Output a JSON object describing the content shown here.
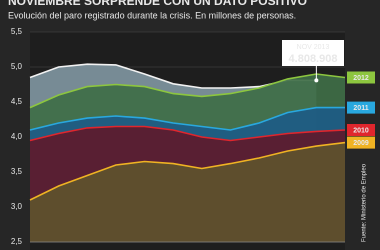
{
  "chart_data": {
    "type": "area",
    "title": "NOVIEMBRE SORPRENDE CON UN DATO POSITIVO",
    "subtitle": "Evolución del paro registrado durante la crisis. En millones de personas.",
    "source": "Fuente: Ministerio de Empleo",
    "categories": [
      null,
      null,
      null,
      null,
      null,
      null,
      null,
      null,
      null,
      null,
      null,
      null
    ],
    "ylim": [
      2.5,
      5.5
    ],
    "yticks": [
      {
        "value": 2.5,
        "label": "2,5"
      },
      {
        "value": 3.0,
        "label": "3,0"
      },
      {
        "value": 3.5,
        "label": "3,5"
      },
      {
        "value": 4.0,
        "label": "4,0"
      },
      {
        "value": 4.5,
        "label": "4,5"
      },
      {
        "value": 5.0,
        "label": "5,0"
      },
      {
        "value": 5.5,
        "label": "5,5"
      }
    ],
    "grid": true,
    "series": [
      {
        "color": "#f2f2f2",
        "fill": "#7f95a0",
        "values": [
          4.85,
          5.0,
          5.04,
          5.03,
          4.9,
          4.76,
          4.7,
          4.7,
          4.72,
          4.81,
          4.808908,
          null
        ],
        "value_labels": [
          null,
          null,
          null,
          null,
          null,
          null,
          null,
          null,
          null,
          null,
          "4.808.908",
          null
        ],
        "annotation": "NOV 2013"
      },
      {
        "name": "2012",
        "color": "#8dc63f",
        "fill": "#3f6e46",
        "values": [
          4.42,
          4.6,
          4.72,
          4.75,
          4.72,
          4.62,
          4.58,
          4.62,
          4.7,
          4.83,
          4.9,
          4.85
        ]
      },
      {
        "name": "2011",
        "color": "#29a8df",
        "fill": "#1d5b86",
        "values": [
          4.1,
          4.2,
          4.27,
          4.3,
          4.27,
          4.2,
          4.15,
          4.1,
          4.2,
          4.35,
          4.42,
          4.42
        ]
      },
      {
        "name": "2010",
        "color": "#e0262d",
        "fill": "#5e1a2c",
        "values": [
          3.95,
          4.05,
          4.13,
          4.15,
          4.15,
          4.1,
          4.0,
          3.95,
          4.0,
          4.05,
          4.08,
          4.1
        ]
      },
      {
        "name": "2009",
        "color": "#f0b323",
        "fill": "#5e532c",
        "values": [
          3.1,
          3.3,
          3.45,
          3.6,
          3.65,
          3.62,
          3.55,
          3.62,
          3.7,
          3.8,
          3.87,
          3.92
        ]
      }
    ]
  }
}
